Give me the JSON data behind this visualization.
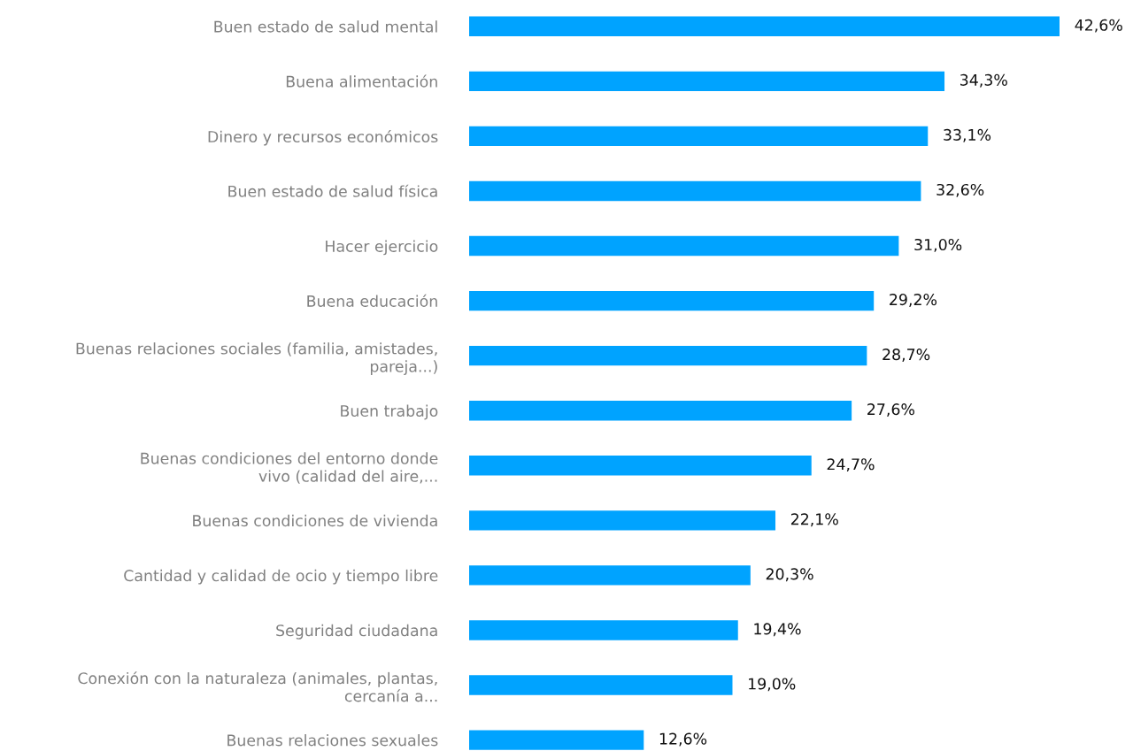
{
  "chart_data": {
    "type": "bar",
    "orientation": "horizontal",
    "categories": [
      "Buen estado de salud mental",
      "Buena alimentación",
      "Dinero y recursos económicos",
      "Buen estado de salud física",
      "Hacer ejercicio",
      "Buena educación",
      "Buenas relaciones sociales (familia, amistades,\npareja...)",
      "Buen trabajo",
      "Buenas condiciones del entorno donde\nvivo (calidad del aire,...",
      "Buenas condiciones de vivienda",
      "Cantidad y calidad de ocio y tiempo libre",
      "Seguridad ciudadana",
      "Conexión con la naturaleza (animales, plantas,\ncercanía a...",
      "Buenas relaciones sexuales"
    ],
    "values": [
      42.6,
      34.3,
      33.1,
      32.6,
      31.0,
      29.2,
      28.7,
      27.6,
      24.7,
      22.1,
      20.3,
      19.4,
      19.0,
      12.6
    ],
    "value_labels": [
      "42,6%",
      "34,3%",
      "33,1%",
      "32,6%",
      "31,0%",
      "29,2%",
      "28,7%",
      "27,6%",
      "24,7%",
      "22,1%",
      "20,3%",
      "19,4%",
      "19,0%",
      "12,6%"
    ],
    "color": "#00a3ff",
    "tick_labels": "y"
  }
}
